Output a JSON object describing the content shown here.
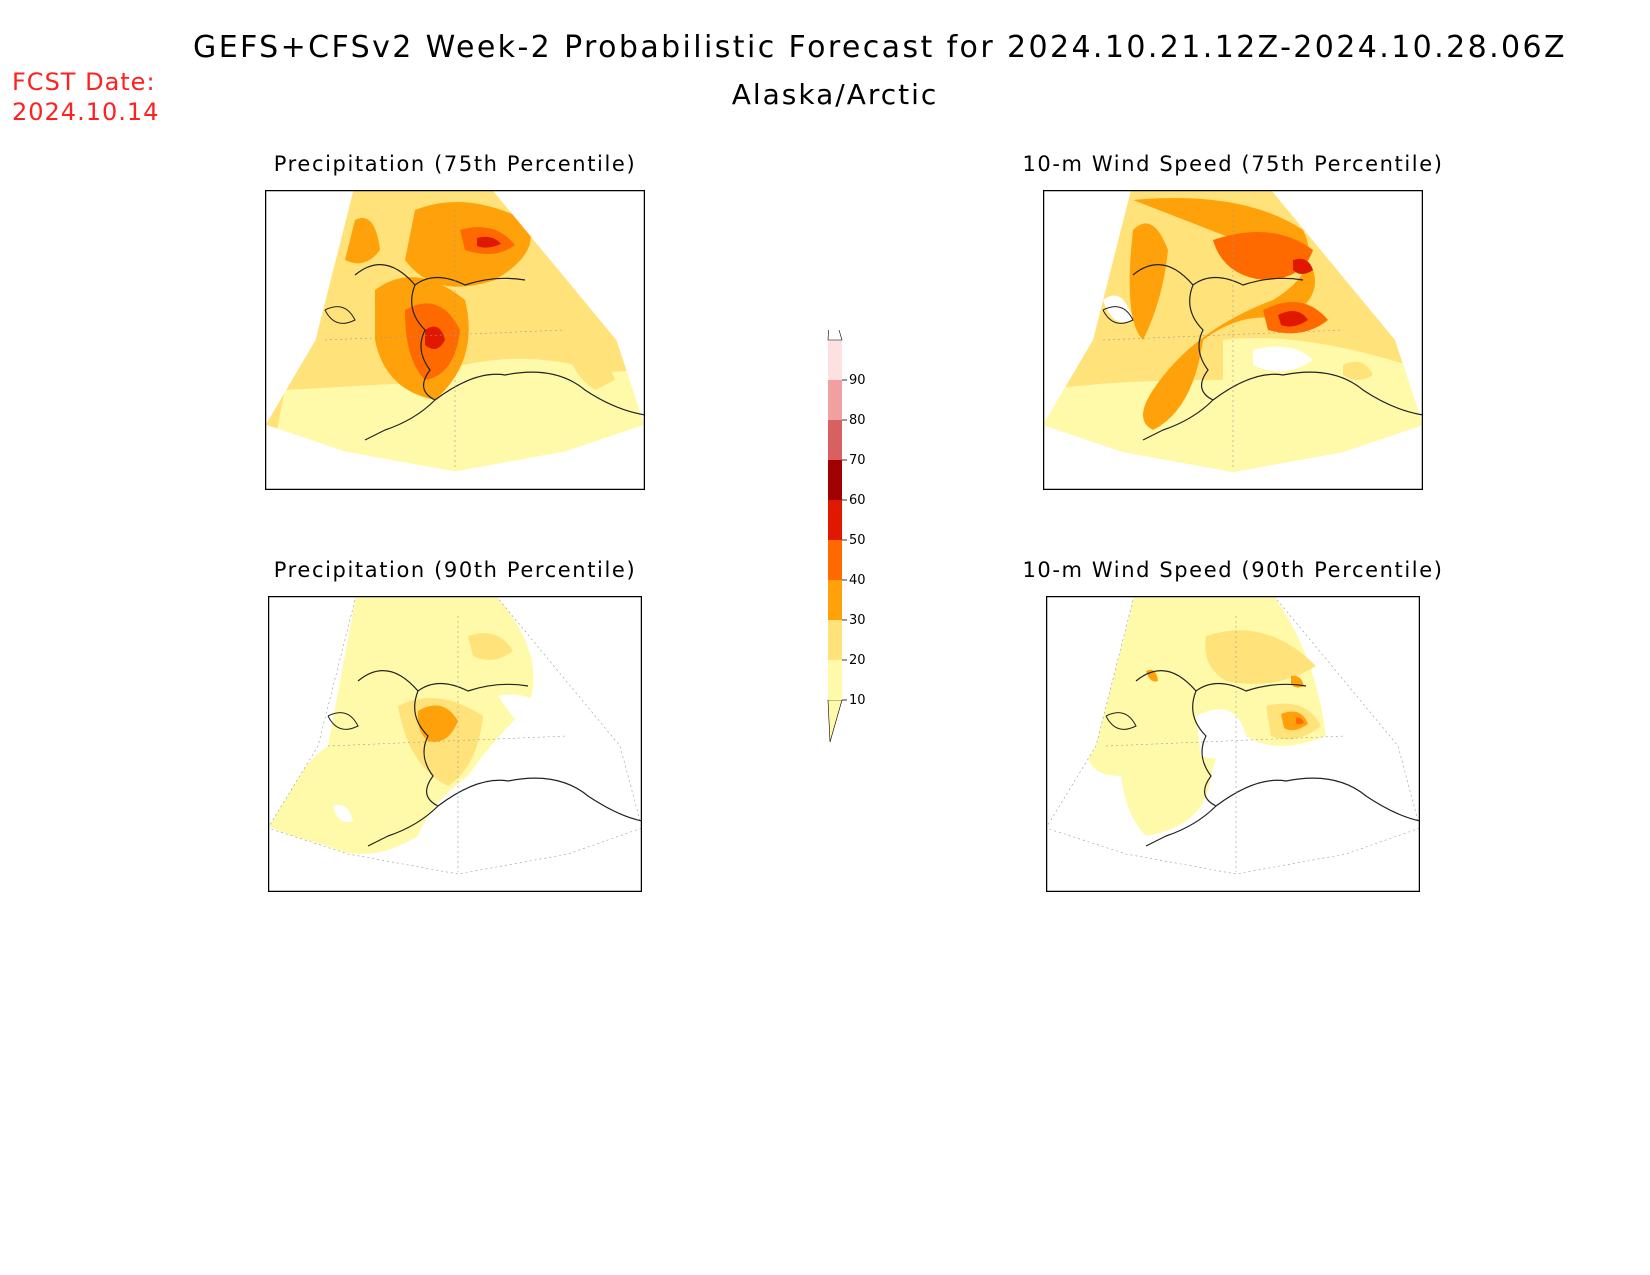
{
  "header": {
    "title": "GEFS+CFSv2 Week-2 Probabilistic Forecast for 2024.10.21.12Z-2024.10.28.06Z",
    "region": "Alaska/Arctic",
    "fcst_label": "FCST Date:",
    "fcst_value": "2024.10.14"
  },
  "panels": [
    {
      "id": "precip75",
      "title": "Precipitation (75th Percentile)"
    },
    {
      "id": "wind75",
      "title": "10-m Wind Speed (75th Percentile)"
    },
    {
      "id": "precip90",
      "title": "Precipitation (90th Percentile)"
    },
    {
      "id": "wind90",
      "title": "10-m Wind Speed (90th Percentile)"
    }
  ],
  "legend": {
    "levels": [
      "10",
      "20",
      "30",
      "40",
      "50",
      "60",
      "70",
      "80",
      "90"
    ],
    "colors": [
      "#fffaaa",
      "#ffe37a",
      "#ffa10a",
      "#ff6a00",
      "#e01800",
      "#a00000",
      "#d86060",
      "#f0a0a0",
      "#fde0e0"
    ]
  }
}
